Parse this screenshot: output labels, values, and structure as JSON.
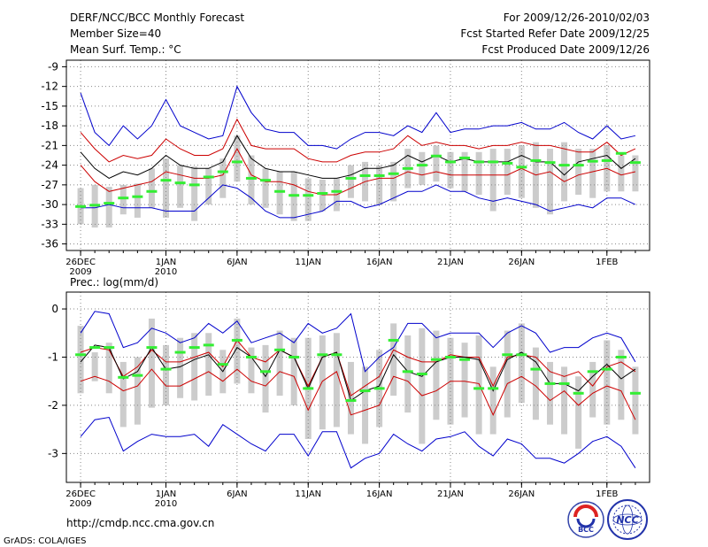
{
  "header": {
    "left": [
      "DERF/NCC/BCC Monthly Forecast",
      "Member Size=40",
      "Mean Surf. Temp.: °C"
    ],
    "right": [
      "For 2009/12/26-2010/02/03",
      "Fcst Started Refer Date 2009/12/25",
      "Fcst Produced Date 2009/12/26"
    ]
  },
  "footer": {
    "url": "http://cmdp.ncc.cma.gov.cn",
    "credit": "GrADS: COLA/IGES",
    "logo_left_text": "BCC",
    "logo_right_text": "NCC"
  },
  "colors": {
    "median": "#000000",
    "quartile": "#cc0000",
    "extreme": "#0000cc",
    "ensemble_mean": "#33ee33",
    "box": "#cccccc",
    "grid": "#888888"
  },
  "chart_data": [
    {
      "type": "line",
      "title": "Mean Surf. Temp.: °C",
      "x_tick_labels": [
        {
          "day": 0,
          "line1": "26DEC",
          "line2": "2009"
        },
        {
          "day": 6,
          "line1": "1JAN",
          "line2": "2010"
        },
        {
          "day": 11,
          "line1": "6JAN",
          "line2": ""
        },
        {
          "day": 16,
          "line1": "11JAN",
          "line2": ""
        },
        {
          "day": 21,
          "line1": "16JAN",
          "line2": ""
        },
        {
          "day": 26,
          "line1": "21JAN",
          "line2": ""
        },
        {
          "day": 31,
          "line1": "26JAN",
          "line2": ""
        },
        {
          "day": 37,
          "line1": "1FEB",
          "line2": ""
        }
      ],
      "x": [
        0,
        1,
        2,
        3,
        4,
        5,
        6,
        7,
        8,
        9,
        10,
        11,
        12,
        13,
        14,
        15,
        16,
        17,
        18,
        19,
        20,
        21,
        22,
        23,
        24,
        25,
        26,
        27,
        28,
        29,
        30,
        31,
        32,
        33,
        34,
        35,
        36,
        37,
        38,
        39
      ],
      "xlim": [
        -1,
        40
      ],
      "ylim": [
        -37,
        -8
      ],
      "yticks": [
        -36,
        -33,
        -30,
        -27,
        -24,
        -21,
        -18,
        -15,
        -12,
        -9
      ],
      "series": [
        {
          "name": "max",
          "values": [
            -13,
            -19,
            -21,
            -18,
            -20,
            -18,
            -14,
            -18,
            -19,
            -20,
            -19.5,
            -12,
            -16,
            -18.5,
            -19,
            -19,
            -21,
            -21,
            -21.5,
            -20,
            -19,
            -19,
            -19.5,
            -18,
            -19,
            -16,
            -19,
            -18.5,
            -18.5,
            -18,
            -18,
            -17.5,
            -18.5,
            -18.5,
            -17.5,
            -19,
            -20,
            -18,
            -20,
            -19.5
          ]
        },
        {
          "name": "upper quartile",
          "values": [
            -19,
            -21.5,
            -23.5,
            -22.5,
            -23,
            -22.5,
            -20,
            -21.5,
            -22.5,
            -22.5,
            -21.5,
            -17,
            -21,
            -21.5,
            -21.5,
            -21.5,
            -23,
            -23.5,
            -23.5,
            -22.5,
            -22,
            -22,
            -21.5,
            -19.5,
            -21,
            -20.5,
            -21,
            -21,
            -21.5,
            -21,
            -21,
            -20.5,
            -21,
            -21,
            -21.5,
            -22,
            -22,
            -20.5,
            -22.5,
            -21.5
          ]
        },
        {
          "name": "median",
          "values": [
            -22,
            -24.5,
            -26,
            -25,
            -25.5,
            -24.5,
            -22.5,
            -24,
            -24.5,
            -24.5,
            -23.5,
            -19.5,
            -23,
            -24.5,
            -25,
            -25,
            -25.5,
            -26,
            -26,
            -25.5,
            -24.5,
            -24.5,
            -24,
            -22.5,
            -23.5,
            -22.5,
            -23.5,
            -23,
            -23.5,
            -23.5,
            -23.5,
            -22.5,
            -23.5,
            -23.5,
            -25.5,
            -23.5,
            -23,
            -22.5,
            -24.5,
            -23
          ]
        },
        {
          "name": "lower quartile",
          "values": [
            -24,
            -26.5,
            -28,
            -27.5,
            -27,
            -26.5,
            -25,
            -25.5,
            -26,
            -26,
            -25.5,
            -21.5,
            -25.5,
            -26.5,
            -26.5,
            -27,
            -28,
            -28.5,
            -28.5,
            -27.5,
            -26.5,
            -26,
            -26,
            -25,
            -25.5,
            -25,
            -25.5,
            -25.5,
            -25.5,
            -25.5,
            -25.5,
            -24.5,
            -25.5,
            -25,
            -26.5,
            -25.5,
            -25,
            -24.5,
            -25.5,
            -25
          ]
        },
        {
          "name": "min",
          "values": [
            -30.5,
            -30.5,
            -30,
            -30.5,
            -30.5,
            -30.5,
            -31,
            -31,
            -31,
            -29,
            -27,
            -27.5,
            -29,
            -31,
            -32,
            -32,
            -31.5,
            -31,
            -29.5,
            -29.5,
            -30.5,
            -30,
            -29,
            -28,
            -28,
            -27,
            -28,
            -28,
            -29,
            -29.5,
            -29,
            -29.5,
            -30,
            -31,
            -30.5,
            -30,
            -30.5,
            -29,
            -29,
            -30
          ]
        },
        {
          "name": "ensemble mean",
          "values": [
            -30.3,
            -30.1,
            -29.8,
            -29,
            -28.8,
            -28,
            -26.3,
            -26.7,
            -27,
            -25.8,
            -25,
            -23.5,
            -26,
            -26.3,
            -28,
            -28.6,
            -28.6,
            -28.3,
            -28,
            -26,
            -25.6,
            -25.6,
            -25.3,
            -24.5,
            -24,
            -22.6,
            -23.5,
            -22.9,
            -23.5,
            -23.5,
            -23.7,
            -24.3,
            -23.3,
            -23.6,
            -24,
            -24,
            -23.4,
            -23.3,
            -22.2,
            -23.6
          ]
        },
        {
          "name": "box top",
          "values": [
            -27.5,
            -27,
            -27.3,
            -27,
            -26.8,
            -24.5,
            -23,
            -24,
            -24.2,
            -24.5,
            -23,
            -19.5,
            -22.5,
            -24.5,
            -25,
            -25,
            -26,
            -26.2,
            -26,
            -24,
            -23.5,
            -24,
            -23.5,
            -21.5,
            -22,
            -21,
            -22,
            -22,
            -22,
            -21.5,
            -21.5,
            -21,
            -20.5,
            -21.5,
            -20.5,
            -21.5,
            -21.5,
            -21,
            -22.5,
            -22.5
          ]
        },
        {
          "name": "box bottom",
          "values": [
            -33,
            -33.5,
            -33.5,
            -31.5,
            -32,
            -30.5,
            -32,
            -30.5,
            -32.5,
            -30,
            -29,
            -26.5,
            -30,
            -30.5,
            -31.5,
            -32.5,
            -32.5,
            -31,
            -31,
            -29,
            -29.5,
            -30,
            -29.5,
            -27.5,
            -27,
            -26.5,
            -27.5,
            -28,
            -28.5,
            -31,
            -28.5,
            -29,
            -30.5,
            -31.5,
            -29.5,
            -28.5,
            -29,
            -28,
            -28,
            -28
          ]
        }
      ]
    },
    {
      "type": "line",
      "title": "Prec.: log(mm/d)",
      "x_tick_labels": [
        {
          "day": 0,
          "line1": "26DEC",
          "line2": "2009"
        },
        {
          "day": 6,
          "line1": "1JAN",
          "line2": "2010"
        },
        {
          "day": 11,
          "line1": "6JAN",
          "line2": ""
        },
        {
          "day": 16,
          "line1": "11JAN",
          "line2": ""
        },
        {
          "day": 21,
          "line1": "16JAN",
          "line2": ""
        },
        {
          "day": 26,
          "line1": "21JAN",
          "line2": ""
        },
        {
          "day": 31,
          "line1": "26JAN",
          "line2": ""
        },
        {
          "day": 37,
          "line1": "1FEB",
          "line2": ""
        }
      ],
      "x": [
        0,
        1,
        2,
        3,
        4,
        5,
        6,
        7,
        8,
        9,
        10,
        11,
        12,
        13,
        14,
        15,
        16,
        17,
        18,
        19,
        20,
        21,
        22,
        23,
        24,
        25,
        26,
        27,
        28,
        29,
        30,
        31,
        32,
        33,
        34,
        35,
        36,
        37,
        38,
        39
      ],
      "xlim": [
        -1,
        40
      ],
      "ylim": [
        -3.6,
        0.35
      ],
      "yticks": [
        -3,
        -2,
        -1,
        0
      ],
      "series": [
        {
          "name": "max",
          "values": [
            -0.5,
            -0.05,
            -0.1,
            -0.8,
            -0.7,
            -0.4,
            -0.5,
            -0.7,
            -0.6,
            -0.3,
            -0.5,
            -0.25,
            -0.7,
            -0.6,
            -0.5,
            -0.7,
            -0.3,
            -0.5,
            -0.4,
            -0.1,
            -1.3,
            -1.0,
            -0.8,
            -0.3,
            -0.3,
            -0.6,
            -0.5,
            -0.5,
            -0.5,
            -0.8,
            -0.5,
            -0.35,
            -0.5,
            -0.9,
            -0.8,
            -0.8,
            -0.6,
            -0.5,
            -0.6,
            -1.1
          ]
        },
        {
          "name": "upper quartile",
          "values": [
            -0.9,
            -0.8,
            -0.85,
            -1.4,
            -1.2,
            -0.85,
            -1.1,
            -1.1,
            -1.0,
            -0.9,
            -1.2,
            -0.65,
            -1.0,
            -1.1,
            -0.85,
            -1.0,
            -1.6,
            -1.0,
            -0.9,
            -1.8,
            -1.6,
            -1.4,
            -0.85,
            -1.0,
            -1.1,
            -1.1,
            -0.95,
            -1.0,
            -1.0,
            -1.6,
            -1.0,
            -0.95,
            -1.0,
            -1.3,
            -1.4,
            -1.3,
            -1.6,
            -1.2,
            -1.1,
            -1.3
          ]
        },
        {
          "name": "median",
          "values": [
            -1.1,
            -0.75,
            -0.8,
            -1.45,
            -1.3,
            -0.8,
            -1.25,
            -1.2,
            -1.05,
            -0.95,
            -1.3,
            -0.8,
            -1.0,
            -1.4,
            -0.85,
            -1.0,
            -1.65,
            -1.0,
            -0.9,
            -1.9,
            -1.7,
            -1.6,
            -0.95,
            -1.3,
            -1.4,
            -1.1,
            -1.0,
            -1.0,
            -1.05,
            -1.7,
            -1.05,
            -0.9,
            -1.1,
            -1.55,
            -1.55,
            -1.7,
            -1.4,
            -1.15,
            -1.45,
            -1.25
          ]
        },
        {
          "name": "lower quartile",
          "values": [
            -1.5,
            -1.4,
            -1.5,
            -1.7,
            -1.6,
            -1.25,
            -1.6,
            -1.6,
            -1.45,
            -1.3,
            -1.5,
            -1.25,
            -1.5,
            -1.6,
            -1.3,
            -1.4,
            -2.1,
            -1.5,
            -1.3,
            -2.2,
            -2.1,
            -2.0,
            -1.4,
            -1.5,
            -1.8,
            -1.7,
            -1.5,
            -1.5,
            -1.55,
            -2.2,
            -1.55,
            -1.4,
            -1.6,
            -1.9,
            -1.7,
            -2.0,
            -1.75,
            -1.6,
            -1.7,
            -2.3
          ]
        },
        {
          "name": "min",
          "values": [
            -2.65,
            -2.3,
            -2.25,
            -2.95,
            -2.75,
            -2.6,
            -2.65,
            -2.65,
            -2.6,
            -2.85,
            -2.4,
            -2.6,
            -2.8,
            -2.95,
            -2.6,
            -2.6,
            -3.05,
            -2.55,
            -2.55,
            -3.3,
            -3.1,
            -3.0,
            -2.6,
            -2.8,
            -2.95,
            -2.7,
            -2.65,
            -2.55,
            -2.85,
            -3.05,
            -2.7,
            -2.8,
            -3.1,
            -3.1,
            -3.2,
            -3.0,
            -2.75,
            -2.65,
            -2.85,
            -3.3
          ]
        },
        {
          "name": "ensemble mean",
          "values": [
            -0.95,
            -0.8,
            -0.8,
            -1.42,
            -1.38,
            -0.8,
            -1.25,
            -0.9,
            -0.8,
            -0.75,
            -1.15,
            -0.65,
            -1.0,
            -1.3,
            -0.85,
            -1.0,
            -1.65,
            -0.95,
            -0.95,
            -1.9,
            -1.7,
            -1.65,
            -0.65,
            -1.3,
            -1.35,
            -1.05,
            -1.0,
            -1.05,
            -1.65,
            -1.65,
            -0.95,
            -0.95,
            -1.25,
            -1.55,
            -1.55,
            -1.75,
            -1.3,
            -1.25,
            -1.0,
            -1.75
          ]
        },
        {
          "name": "box top",
          "values": [
            -0.35,
            -0.9,
            -0.7,
            -1.1,
            -1.0,
            -0.2,
            -0.75,
            -0.6,
            -0.5,
            -0.5,
            -0.85,
            -0.2,
            -0.8,
            -0.75,
            -0.45,
            -0.6,
            -0.6,
            -0.55,
            -0.5,
            -1.1,
            -1.2,
            -0.85,
            -0.3,
            -0.55,
            -0.4,
            -0.45,
            -0.6,
            -0.7,
            -0.55,
            -1.2,
            -0.45,
            -0.3,
            -0.8,
            -1.1,
            -1.2,
            -1.4,
            -1.1,
            -0.65,
            -0.85,
            -1.2
          ]
        },
        {
          "name": "box bottom",
          "values": [
            -1.75,
            -1.5,
            -1.75,
            -2.45,
            -2.4,
            -2.05,
            -2.0,
            -1.85,
            -1.9,
            -1.8,
            -1.75,
            -1.55,
            -1.75,
            -2.15,
            -1.8,
            -2.0,
            -2.7,
            -2.5,
            -2.45,
            -2.6,
            -2.8,
            -2.45,
            -1.8,
            -2.15,
            -2.8,
            -2.3,
            -2.4,
            -2.25,
            -2.6,
            -2.6,
            -2.25,
            -1.95,
            -2.3,
            -2.4,
            -2.6,
            -2.9,
            -2.25,
            -2.4,
            -2.3,
            -2.6
          ]
        }
      ]
    }
  ]
}
